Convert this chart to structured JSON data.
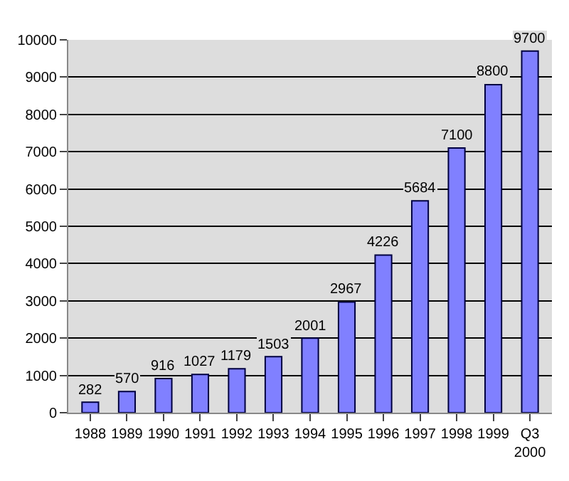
{
  "chart_data": {
    "type": "bar",
    "categories": [
      "1988",
      "1989",
      "1990",
      "1991",
      "1992",
      "1993",
      "1994",
      "1995",
      "1996",
      "1997",
      "1998",
      "1999",
      "Q3\n2000"
    ],
    "values": [
      282,
      570,
      916,
      1027,
      1179,
      1503,
      2001,
      2967,
      4226,
      5684,
      7100,
      8800,
      9700
    ],
    "color": "#8080ff",
    "ylim": [
      0,
      10000
    ],
    "yticks": [
      0,
      1000,
      2000,
      3000,
      4000,
      5000,
      6000,
      7000,
      8000,
      9000,
      10000
    ],
    "grid": "y",
    "data_labels": true,
    "legend": false
  }
}
